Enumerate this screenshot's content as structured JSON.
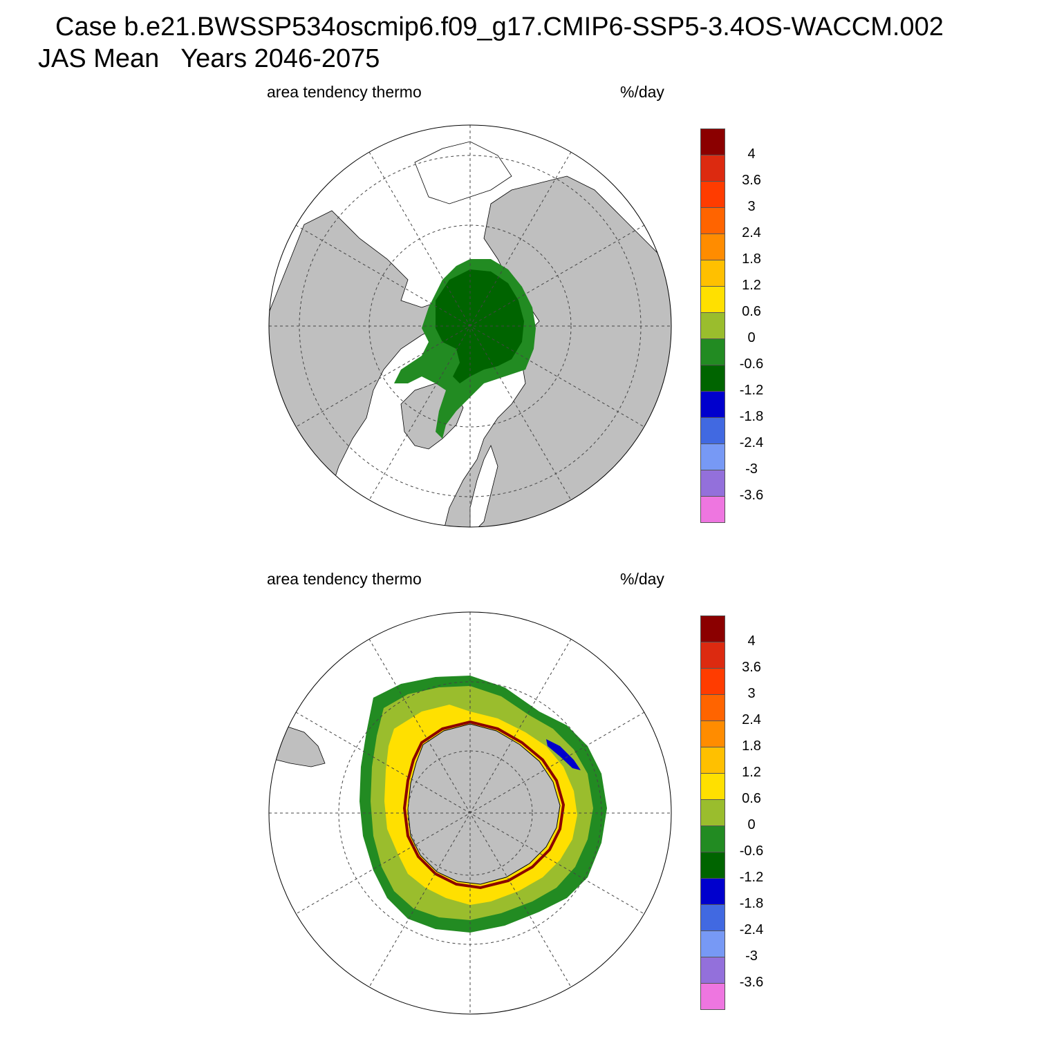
{
  "title_line1": "Case b.e21.BWSSP534oscmip6.f09_g17.CMIP6-SSP5-3.4OS-WACCM.002",
  "title_line2": "JAS Mean   Years 2046-2075",
  "panels": [
    {
      "left_label": "area tendency thermo",
      "right_label": "%/day",
      "hemisphere": "north"
    },
    {
      "left_label": "area tendency thermo",
      "right_label": "%/day",
      "hemisphere": "south"
    }
  ],
  "colorbar": {
    "colors": [
      "#8b0000",
      "#dc2a10",
      "#ff3c00",
      "#ff6400",
      "#ff8c00",
      "#ffc000",
      "#ffe000",
      "#9abd2d",
      "#228b22",
      "#006400",
      "#0000cd",
      "#4169e1",
      "#7799f5",
      "#9370db",
      "#ee76e0"
    ],
    "ticks": [
      "4",
      "3.6",
      "3",
      "2.4",
      "1.8",
      "1.2",
      "0.6",
      "0",
      "-0.6",
      "-1.2",
      "-1.8",
      "-2.4",
      "-3",
      "-3.6"
    ]
  },
  "colors": {
    "land": "#bfbfbf",
    "ocean": "#ffffff"
  }
}
